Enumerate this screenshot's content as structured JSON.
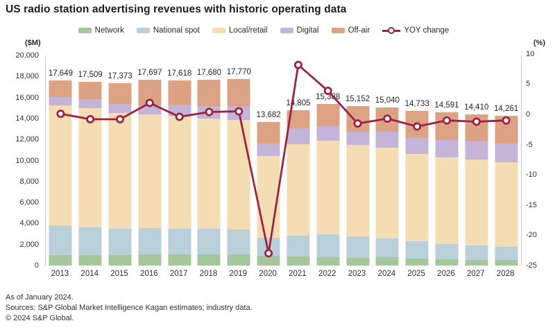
{
  "title": "US radio station advertising revenues with historic operating data",
  "axes": {
    "left_unit": "($M)",
    "right_unit": "(%)",
    "left_ticks": [
      "0",
      "2,000",
      "4,000",
      "6,000",
      "8,000",
      "10,000",
      "12,000",
      "14,000",
      "16,000",
      "18,000",
      "20,000"
    ],
    "left_range": [
      0,
      20000
    ],
    "right_ticks": [
      "10",
      "5",
      "0",
      "-5",
      "-10",
      "-15",
      "-20",
      "-25"
    ],
    "right_range": [
      -25,
      10
    ]
  },
  "legend": {
    "items": [
      {
        "label": "Network",
        "color": "#a5c79b"
      },
      {
        "label": "National spot",
        "color": "#b9cfda"
      },
      {
        "label": "Local/retail",
        "color": "#f4ddb2"
      },
      {
        "label": "Digital",
        "color": "#c4b4d8"
      },
      {
        "label": "Off-air",
        "color": "#dca284"
      }
    ],
    "line_item": {
      "label": "YOY change",
      "color": "#9e2143"
    }
  },
  "chart_data": {
    "type": "stacked-bar-with-line",
    "title": "US radio station advertising revenues with historic operating data",
    "xlabel": "",
    "ylabel_left": "($M)",
    "ylabel_right": "(%)",
    "ylim_left": [
      0,
      20000
    ],
    "ylim_right": [
      -25,
      10
    ],
    "grid": false,
    "legend_position": "top",
    "categories": [
      "2013",
      "2014",
      "2015",
      "2016",
      "2017",
      "2018",
      "2019",
      "2020",
      "2021",
      "2022",
      "2023",
      "2024",
      "2025",
      "2026",
      "2027",
      "2028"
    ],
    "series": [
      {
        "name": "Network",
        "color": "#a5c79b",
        "values": [
          1000,
          1000,
          1000,
          1050,
          1030,
          1030,
          1030,
          950,
          840,
          820,
          725,
          775,
          660,
          575,
          550,
          510
        ]
      },
      {
        "name": "National spot",
        "color": "#b9cfda",
        "values": [
          2810,
          2660,
          2530,
          2540,
          2500,
          2450,
          2385,
          1690,
          2025,
          2140,
          2030,
          1780,
          1680,
          1475,
          1390,
          1255
        ]
      },
      {
        "name": "Local/retail",
        "color": "#f4ddb2",
        "values": [
          11440,
          11315,
          10965,
          10795,
          10745,
          10530,
          10460,
          7782,
          8660,
          8918,
          8747,
          8640,
          8300,
          8220,
          8150,
          8105
        ]
      },
      {
        "name": "Digital",
        "color": "#c4b4d8",
        "values": [
          780,
          840,
          880,
          880,
          1055,
          1190,
          1325,
          1210,
          1540,
          1425,
          1245,
          1535,
          1540,
          1690,
          1715,
          1760
        ]
      },
      {
        "name": "Off-air",
        "color": "#dca284",
        "values": [
          1619,
          1694,
          1998,
          2432,
          2288,
          2480,
          2570,
          2050,
          1740,
          2085,
          2405,
          2310,
          2553,
          2631,
          2605,
          2631
        ]
      }
    ],
    "totals": [
      17649,
      17509,
      17373,
      17697,
      17618,
      17680,
      17770,
      13682,
      14805,
      15388,
      15152,
      15040,
      14733,
      14591,
      14410,
      14261
    ],
    "totals_labels": [
      "17,649",
      "17,509",
      "17,373",
      "17,697",
      "17,618",
      "17,680",
      "17,770",
      "13,682",
      "14,805",
      "15,388",
      "15,152",
      "15,040",
      "14,733",
      "14,591",
      "14,410",
      "14,261"
    ],
    "line_series": {
      "name": "YOY change",
      "color": "#9e2143",
      "axis": "right",
      "values": [
        0.1,
        -0.8,
        -0.8,
        1.9,
        -0.4,
        0.4,
        0.5,
        -23.0,
        8.2,
        3.9,
        -1.5,
        -0.7,
        -2.0,
        -1.0,
        -1.2,
        -1.0
      ]
    },
    "note": "stacked segment values estimated from bar geometry; totals and YOY markers as labeled/plotted"
  },
  "footer": {
    "line1": "As of January 2024.",
    "line2": "Sources: S&P Global Market Intelligence Kagan estimates; industry data.",
    "line3": "© 2024 S&P Global."
  }
}
